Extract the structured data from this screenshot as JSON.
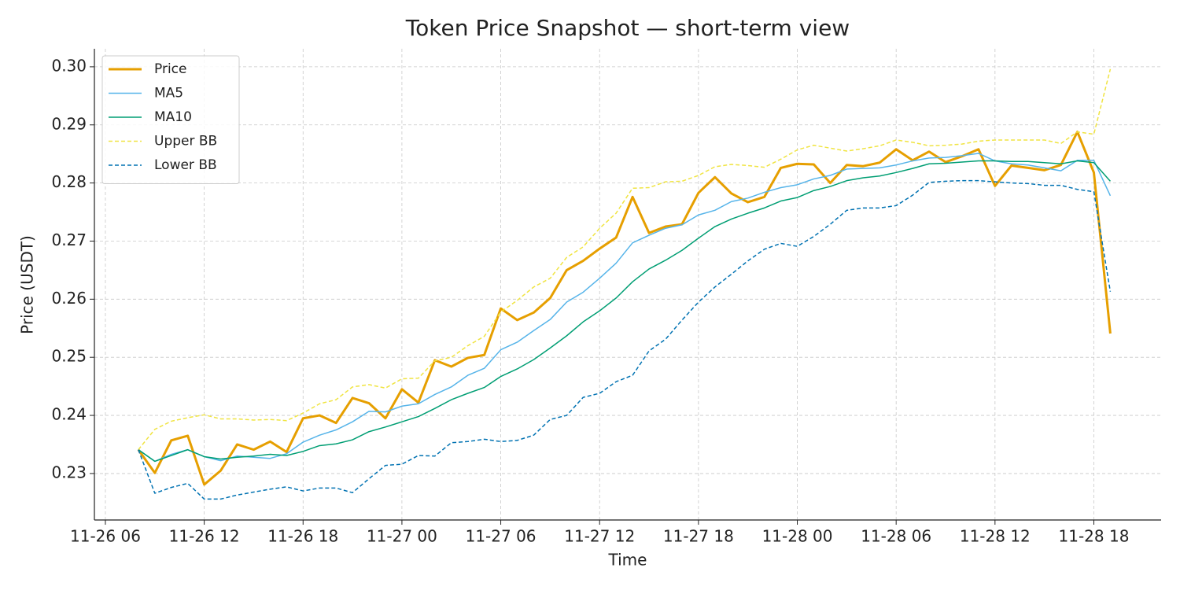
{
  "chart_data": {
    "type": "line",
    "title": "Token Price Snapshot — short-term view",
    "x_label": "Time",
    "y_label": "Price (USDT)",
    "x": [
      "11-26 08:00",
      "11-26 09:00",
      "11-26 10:00",
      "11-26 11:00",
      "11-26 12:00",
      "11-26 13:00",
      "11-26 14:00",
      "11-26 15:00",
      "11-26 16:00",
      "11-26 17:00",
      "11-26 18:00",
      "11-26 19:00",
      "11-26 20:00",
      "11-26 21:00",
      "11-26 22:00",
      "11-26 23:00",
      "11-27 00:00",
      "11-27 01:00",
      "11-27 02:00",
      "11-27 03:00",
      "11-27 04:00",
      "11-27 05:00",
      "11-27 06:00",
      "11-27 07:00",
      "11-27 08:00",
      "11-27 09:00",
      "11-27 10:00",
      "11-27 11:00",
      "11-27 12:00",
      "11-27 13:00",
      "11-27 14:00",
      "11-27 15:00",
      "11-27 16:00",
      "11-27 17:00",
      "11-27 18:00",
      "11-27 19:00",
      "11-27 20:00",
      "11-27 21:00",
      "11-27 22:00",
      "11-27 23:00",
      "11-28 00:00",
      "11-28 01:00",
      "11-28 02:00",
      "11-28 03:00",
      "11-28 04:00",
      "11-28 05:00",
      "11-28 06:00",
      "11-28 07:00",
      "11-28 08:00",
      "11-28 09:00",
      "11-28 10:00",
      "11-28 11:00",
      "11-28 12:00",
      "11-28 13:00",
      "11-28 14:00",
      "11-28 15:00",
      "11-28 16:00",
      "11-28 17:00",
      "11-28 18:00",
      "11-28 19:00"
    ],
    "series": [
      {
        "name": "Price",
        "color": "#e69f00",
        "linewidth": 3,
        "linestyle": "solid",
        "values": [
          0.2341,
          0.2301,
          0.2357,
          0.2365,
          0.2281,
          0.2305,
          0.235,
          0.2341,
          0.2355,
          0.2337,
          0.2395,
          0.24,
          0.2387,
          0.243,
          0.2421,
          0.2395,
          0.2445,
          0.2422,
          0.2495,
          0.2484,
          0.2499,
          0.2504,
          0.2584,
          0.2564,
          0.2577,
          0.2602,
          0.265,
          0.2666,
          0.2687,
          0.2706,
          0.2776,
          0.2714,
          0.2725,
          0.2729,
          0.2783,
          0.281,
          0.2782,
          0.2767,
          0.2776,
          0.2826,
          0.2833,
          0.2832,
          0.28,
          0.2831,
          0.2829,
          0.2835,
          0.2858,
          0.2839,
          0.2854,
          0.2836,
          0.2846,
          0.2858,
          0.2795,
          0.283,
          0.2826,
          0.2822,
          0.2831,
          0.2888,
          0.2818,
          0.2541
        ]
      },
      {
        "name": "MA5",
        "color": "#56b4e9",
        "linewidth": 1.5,
        "linestyle": "solid",
        "values": [
          0.2341,
          0.2321,
          0.2333,
          0.2341,
          0.2329,
          0.2322,
          0.233,
          0.2328,
          0.2326,
          0.2334,
          0.2354,
          0.2366,
          0.2375,
          0.2389,
          0.2407,
          0.2406,
          0.2416,
          0.242,
          0.2436,
          0.2449,
          0.2469,
          0.2481,
          0.2513,
          0.2526,
          0.2546,
          0.2565,
          0.2595,
          0.2612,
          0.2636,
          0.2662,
          0.2697,
          0.271,
          0.2722,
          0.2728,
          0.2745,
          0.2753,
          0.2768,
          0.2774,
          0.2784,
          0.2792,
          0.2797,
          0.2807,
          0.2813,
          0.2824,
          0.2825,
          0.2826,
          0.2831,
          0.2838,
          0.2843,
          0.2844,
          0.2847,
          0.2851,
          0.2838,
          0.2833,
          0.2831,
          0.2826,
          0.2821,
          0.2839,
          0.2839,
          0.2778
        ]
      },
      {
        "name": "MA10",
        "color": "#009e73",
        "linewidth": 1.5,
        "linestyle": "solid",
        "values": [
          0.2341,
          0.2321,
          0.2331,
          0.2341,
          0.2329,
          0.2325,
          0.2328,
          0.233,
          0.2333,
          0.2331,
          0.2338,
          0.2348,
          0.2351,
          0.2358,
          0.2372,
          0.238,
          0.2389,
          0.2398,
          0.2412,
          0.2427,
          0.2438,
          0.2448,
          0.2467,
          0.248,
          0.2496,
          0.2516,
          0.2537,
          0.2561,
          0.258,
          0.2602,
          0.263,
          0.2652,
          0.2667,
          0.2684,
          0.2705,
          0.2725,
          0.2738,
          0.2748,
          0.2757,
          0.2769,
          0.2775,
          0.2787,
          0.2794,
          0.2804,
          0.2809,
          0.2812,
          0.2818,
          0.2825,
          0.2833,
          0.2834,
          0.2836,
          0.2838,
          0.2838,
          0.2837,
          0.2837,
          0.2835,
          0.2833,
          0.2838,
          0.2835,
          0.2803
        ]
      },
      {
        "name": "Upper BB",
        "color": "#f0e442",
        "linewidth": 1.5,
        "linestyle": "dashed",
        "values": [
          0.2341,
          0.2376,
          0.239,
          0.2396,
          0.2401,
          0.2394,
          0.2394,
          0.2392,
          0.2393,
          0.2391,
          0.2404,
          0.242,
          0.2427,
          0.2449,
          0.2453,
          0.2447,
          0.2463,
          0.2464,
          0.2494,
          0.25,
          0.252,
          0.2536,
          0.2578,
          0.2598,
          0.2621,
          0.2636,
          0.2672,
          0.269,
          0.2722,
          0.2748,
          0.2791,
          0.2792,
          0.2802,
          0.2803,
          0.2813,
          0.2828,
          0.2832,
          0.283,
          0.2827,
          0.2841,
          0.2857,
          0.2865,
          0.286,
          0.2855,
          0.2859,
          0.2864,
          0.2874,
          0.287,
          0.2864,
          0.2865,
          0.2867,
          0.2872,
          0.2874,
          0.2874,
          0.2874,
          0.2874,
          0.2868,
          0.2888,
          0.2884,
          0.2996
        ]
      },
      {
        "name": "Lower BB",
        "color": "#0072b2",
        "linewidth": 1.5,
        "linestyle": "dashed",
        "values": [
          0.2341,
          0.2266,
          0.2276,
          0.2283,
          0.2256,
          0.2256,
          0.2263,
          0.2268,
          0.2273,
          0.2277,
          0.227,
          0.2275,
          0.2275,
          0.2267,
          0.2291,
          0.2314,
          0.2316,
          0.2331,
          0.233,
          0.2353,
          0.2355,
          0.2359,
          0.2355,
          0.2357,
          0.2366,
          0.2393,
          0.24,
          0.2431,
          0.2438,
          0.2458,
          0.2469,
          0.2511,
          0.2531,
          0.2564,
          0.2595,
          0.2621,
          0.2643,
          0.2666,
          0.2686,
          0.2696,
          0.2691,
          0.2708,
          0.2729,
          0.2753,
          0.2757,
          0.2757,
          0.2761,
          0.2779,
          0.2801,
          0.2803,
          0.2804,
          0.2804,
          0.2802,
          0.28,
          0.2799,
          0.2796,
          0.2796,
          0.2789,
          0.2785,
          0.2613
        ]
      }
    ],
    "xlim": [
      "11-26 05:20",
      "11-28 22:05"
    ],
    "xticks": [
      {
        "value": "11-26 06:00",
        "label": "11-26 06"
      },
      {
        "value": "11-26 12:00",
        "label": "11-26 12"
      },
      {
        "value": "11-26 18:00",
        "label": "11-26 18"
      },
      {
        "value": "11-27 00:00",
        "label": "11-27 00"
      },
      {
        "value": "11-27 06:00",
        "label": "11-27 06"
      },
      {
        "value": "11-27 12:00",
        "label": "11-27 12"
      },
      {
        "value": "11-27 18:00",
        "label": "11-27 18"
      },
      {
        "value": "11-28 00:00",
        "label": "11-28 00"
      },
      {
        "value": "11-28 06:00",
        "label": "11-28 06"
      },
      {
        "value": "11-28 12:00",
        "label": "11-28 12"
      },
      {
        "value": "11-28 18:00",
        "label": "11-28 18"
      }
    ],
    "ylim": [
      0.222,
      0.3031
    ],
    "yticks": [
      0.23,
      0.24,
      0.25,
      0.26,
      0.27,
      0.28,
      0.29,
      {
        "value": 0.3,
        "label": "0.30"
      }
    ],
    "grid": true,
    "legend": "upper left"
  }
}
